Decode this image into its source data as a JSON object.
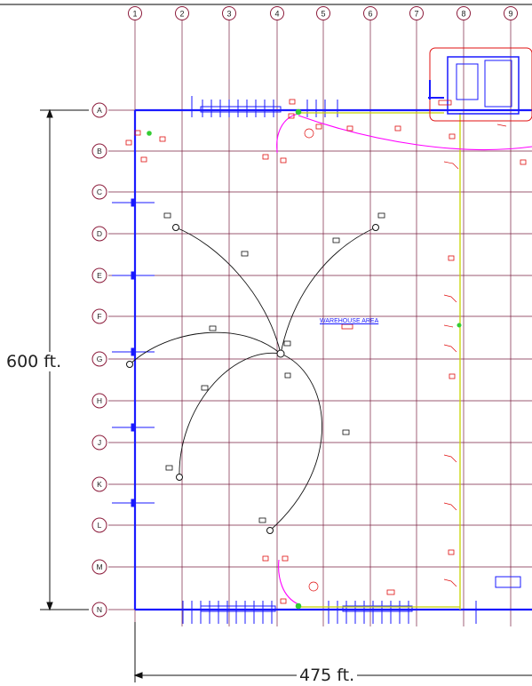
{
  "column_grid": [
    "1",
    "2",
    "3",
    "4",
    "5",
    "6",
    "7",
    "8",
    "9"
  ],
  "row_grid": [
    "A",
    "B",
    "C",
    "D",
    "E",
    "F",
    "G",
    "H",
    "J",
    "K",
    "L",
    "M",
    "N"
  ],
  "dimensions": {
    "height": "600  ft.",
    "width": "475  ft."
  },
  "area_label": "WAREHOUSE AREA",
  "colors": {
    "building_outline": "#1a1aff",
    "grid_lines": "#7a2040",
    "bubbles": "#8b1a3a",
    "branch_circuits": "#ff00ff",
    "main_feeder": "#c8d400",
    "tags": "#e01010",
    "curves": "#111111"
  }
}
